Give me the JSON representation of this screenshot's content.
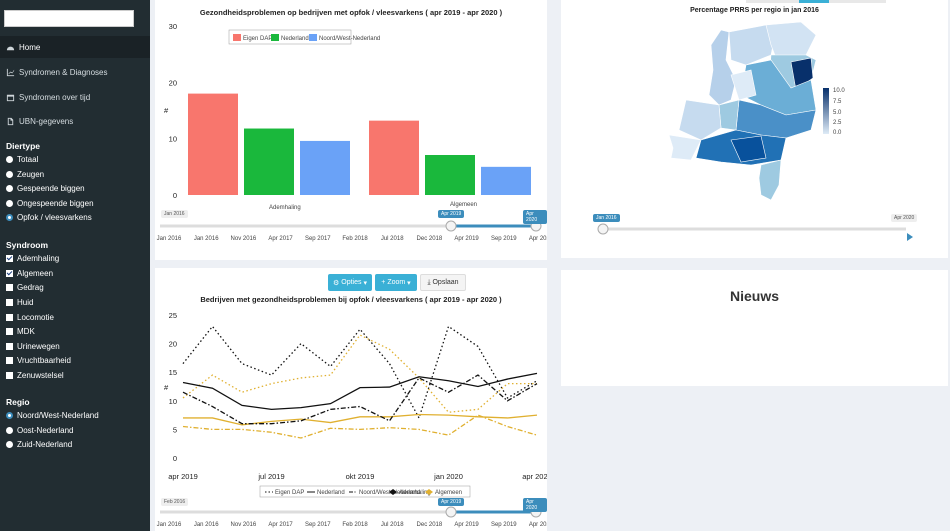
{
  "sidebar": {
    "nav": [
      {
        "label": "Home",
        "icon": "dashboard-icon"
      },
      {
        "label": "Syndromen & Diagnoses",
        "icon": "line-chart-icon"
      },
      {
        "label": "Syndromen over tijd",
        "icon": "calendar-icon"
      },
      {
        "label": "UBN-gegevens",
        "icon": "file-icon"
      }
    ],
    "diertype": {
      "title": "Diertype",
      "options": [
        "Totaal",
        "Zeugen",
        "Gespeende biggen",
        "Ongespeende biggen",
        "Opfok / vleesvarkens"
      ],
      "selected": 4
    },
    "syndroom": {
      "title": "Syndroom",
      "options": [
        "Ademhaling",
        "Algemeen",
        "Gedrag",
        "Huid",
        "Locomotie",
        "MDK",
        "Urinewegen",
        "Vruchtbaarheid",
        "Zenuwstelsel"
      ],
      "checked": [
        0,
        1
      ]
    },
    "regio": {
      "title": "Regio",
      "options": [
        "Noord/West-Nederland",
        "Oost-Nederland",
        "Zuid-Nederland"
      ],
      "selected": 0
    }
  },
  "bar_panel": {
    "slider": {
      "start_label": "Jan 2016",
      "from_label": "Apr 2019",
      "to_label": "Apr 2020",
      "ticks": [
        "Jan 2016",
        "Jan 2016",
        "Nov 2016",
        "Apr 2017",
        "Sep 2017",
        "Feb 2018",
        "Jul 2018",
        "Dec 2018",
        "Apr 2019",
        "Sep 2019",
        "Apr 2020"
      ]
    }
  },
  "line_panel": {
    "buttons": {
      "options": "Opties",
      "zoom": "Zoom",
      "save": "Opslaan"
    },
    "slider": {
      "start_label": "Feb 2016",
      "from_label": "Apr 2019",
      "to_label": "Apr 2020",
      "ticks": [
        "Jan 2016",
        "Jan 2016",
        "Nov 2016",
        "Apr 2017",
        "Sep 2017",
        "Feb 2018",
        "Jul 2018",
        "Dec 2018",
        "Apr 2019",
        "Sep 2019",
        "Apr 2020"
      ]
    },
    "legend": {
      "lines": [
        "Eigen DAP",
        "Nederland",
        "Noord/West-Nederland"
      ],
      "syndromes": [
        "Ademhaling",
        "Algemeen"
      ]
    }
  },
  "map_panel": {
    "title": "Percentage PRRS per regio in jan 2016",
    "legend": [
      "10.0",
      "7.5",
      "5.0",
      "2.5",
      "0.0"
    ],
    "slider": {
      "from_label": "Jan 2016",
      "end_label": "Apr 2020"
    },
    "colors": {
      "dark": "#08306b",
      "mid": "#4a90c8",
      "light": "#c6dbef"
    }
  },
  "news_panel": {
    "title": "Nieuws"
  },
  "chart_data": [
    {
      "type": "bar",
      "title": "Gezondheidsproblemen op bedrijven met opfok / vleesvarkens ( apr 2019 - apr 2020 )",
      "ylabel": "#",
      "categories": [
        "Ademhaling",
        "Algemeen"
      ],
      "series": [
        {
          "name": "Eigen DAP",
          "color": "#f8766d",
          "values": [
            18,
            13.2
          ]
        },
        {
          "name": "Nederland",
          "color": "#1ab83c",
          "values": [
            11.8,
            7.1
          ]
        },
        {
          "name": "Noord/West-Nederland",
          "color": "#6aa2f7",
          "values": [
            9.6,
            5.0
          ]
        }
      ],
      "ylim": [
        0,
        30
      ],
      "yticks": [
        0,
        10,
        20,
        30
      ]
    },
    {
      "type": "line",
      "title": "Bedrijven met gezondheidsproblemen bij opfok / vleesvarkens ( apr 2019 - apr 2020 )",
      "ylabel": "#",
      "x": [
        0,
        1,
        2,
        3,
        4,
        5,
        6,
        7,
        8,
        9,
        10,
        11,
        12
      ],
      "xticks": [
        {
          "x": 0,
          "label": "apr 2019"
        },
        {
          "x": 3,
          "label": "jul 2019"
        },
        {
          "x": 6,
          "label": "okt 2019"
        },
        {
          "x": 9,
          "label": "jan 2020"
        },
        {
          "x": 12,
          "label": "apr 2020"
        }
      ],
      "ylim": [
        0,
        25
      ],
      "yticks": [
        0,
        5,
        10,
        15,
        20,
        25
      ],
      "series": [
        {
          "name": "Eigen DAP - Ademhaling",
          "color": "#111111",
          "dash": "dot",
          "values": [
            16.5,
            23,
            16.5,
            14.5,
            20,
            16,
            22.5,
            16.5,
            7,
            23,
            19.5,
            10.5,
            13.5
          ]
        },
        {
          "name": "Eigen DAP - Algemeen",
          "color": "#e0b030",
          "dash": "dot",
          "values": [
            10.5,
            14.5,
            11.5,
            13,
            14,
            14.5,
            21.5,
            19,
            14,
            8,
            8.5,
            13,
            13
          ]
        },
        {
          "name": "Nederland - Ademhaling",
          "color": "#111111",
          "dash": "solid",
          "values": [
            13.2,
            12.2,
            9.2,
            8.5,
            8.8,
            9.5,
            12.3,
            12.4,
            14.2,
            13.5,
            12.5,
            13.8,
            14.8
          ]
        },
        {
          "name": "Nederland - Algemeen",
          "color": "#e0b030",
          "dash": "solid",
          "values": [
            7,
            7,
            5.8,
            6.4,
            6.8,
            6.2,
            7.2,
            7.2,
            7.6,
            7.5,
            7.2,
            7.0,
            7.5
          ]
        },
        {
          "name": "Noord/West-Nederland - Ademhaling",
          "color": "#111111",
          "dash": "dashdot",
          "values": [
            11.5,
            9,
            6,
            6,
            6.5,
            8.5,
            9,
            6.5,
            14,
            11.5,
            14.5,
            10,
            13
          ]
        },
        {
          "name": "Noord/West-Nederland - Algemeen",
          "color": "#e0b030",
          "dash": "dashdot",
          "values": [
            5.5,
            5,
            5,
            4.5,
            3.5,
            5.2,
            5,
            5.3,
            5,
            4,
            7.5,
            5.5,
            4
          ]
        }
      ]
    }
  ]
}
